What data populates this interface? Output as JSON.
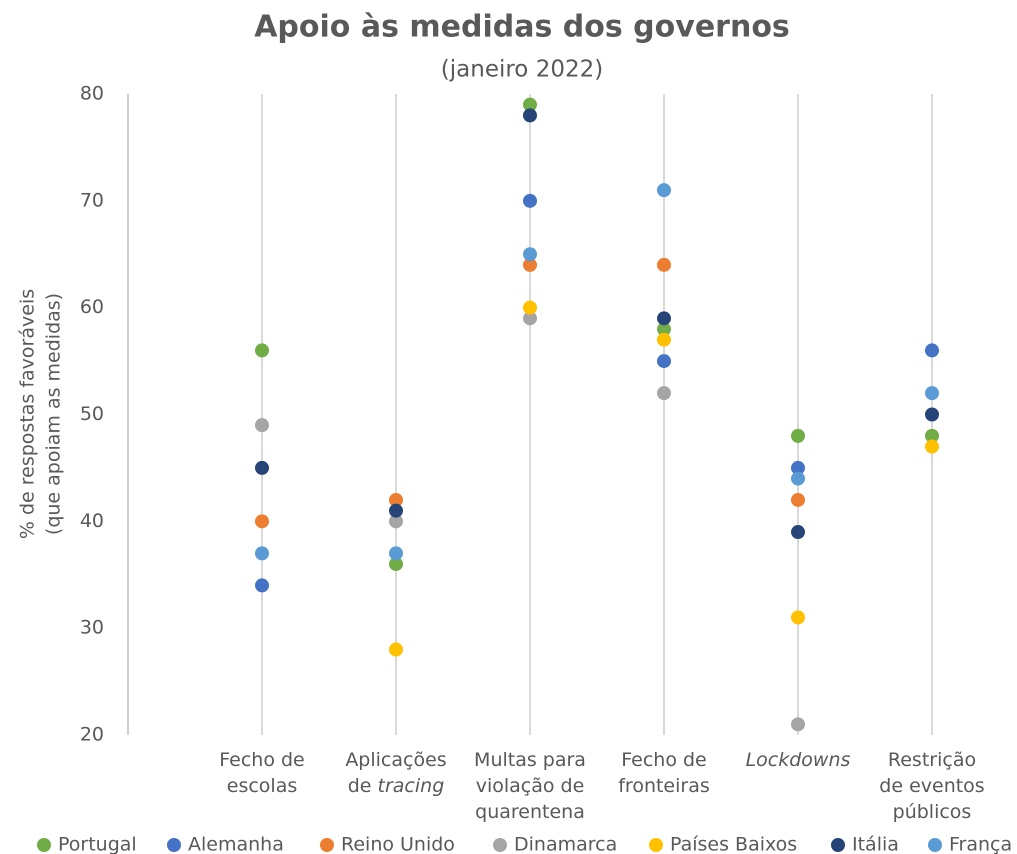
{
  "chart_data": {
    "type": "dot",
    "title": "Apoio às medidas dos governos",
    "subtitle": "(janeiro 2022)",
    "ylabel": [
      "% de respostas favoráveis",
      "(que apoiam as medidas)"
    ],
    "categories": [
      [
        [
          {
            "text": "Fecho de"
          }
        ],
        [
          {
            "text": "escolas"
          }
        ]
      ],
      [
        [
          {
            "text": "Aplicações"
          }
        ],
        [
          {
            "text": "de "
          },
          {
            "text": "tracing",
            "italic": true
          }
        ]
      ],
      [
        [
          {
            "text": "Multas para"
          }
        ],
        [
          {
            "text": "violação de"
          }
        ],
        [
          {
            "text": "quarentena"
          }
        ]
      ],
      [
        [
          {
            "text": "Fecho de"
          }
        ],
        [
          {
            "text": "fronteiras"
          }
        ]
      ],
      [
        [
          {
            "text": "Lockdowns",
            "italic": true
          }
        ]
      ],
      [
        [
          {
            "text": "Restrição"
          }
        ],
        [
          {
            "text": "de eventos"
          }
        ],
        [
          {
            "text": "públicos"
          }
        ]
      ]
    ],
    "series": [
      {
        "name": "Portugal",
        "color": "#70ad47",
        "values": [
          56,
          36,
          79,
          58,
          48,
          48
        ]
      },
      {
        "name": "Alemanha",
        "color": "#4472c4",
        "values": [
          34,
          null,
          70,
          55,
          45,
          56
        ]
      },
      {
        "name": "Reino Unido",
        "color": "#ed7d31",
        "values": [
          40,
          42,
          64,
          64,
          42,
          null
        ]
      },
      {
        "name": "Dinamarca",
        "color": "#a5a5a5",
        "values": [
          49,
          40,
          59,
          52,
          21,
          null
        ]
      },
      {
        "name": "Países Baixos",
        "color": "#ffc000",
        "values": [
          null,
          28,
          60,
          57,
          31,
          47
        ]
      },
      {
        "name": "Itália",
        "color": "#264478",
        "values": [
          45,
          41,
          78,
          59,
          39,
          50
        ]
      },
      {
        "name": "França",
        "color": "#5b9bd5",
        "values": [
          37,
          37,
          65,
          71,
          44,
          52
        ]
      }
    ],
    "ylim": [
      20,
      80
    ],
    "yticks": [
      20,
      30,
      40,
      50,
      60,
      70,
      80
    ],
    "legend": "bottom"
  }
}
